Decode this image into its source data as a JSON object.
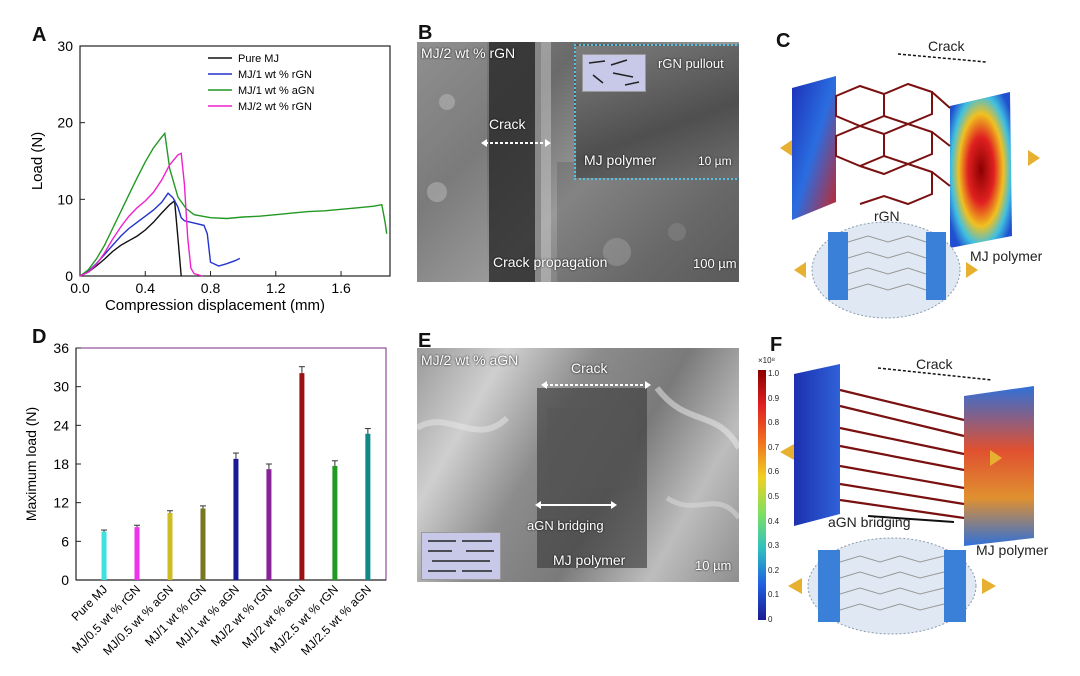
{
  "panels": {
    "A": {
      "letter": "A"
    },
    "B": {
      "letter": "B",
      "title": "MJ/2 wt % rGN",
      "crack": "Crack",
      "crack_propagation": "Crack propagation",
      "scale": "100 µm",
      "inset_pullout": "rGN pullout",
      "inset_polymer": "MJ polymer",
      "inset_scale": "10 µm"
    },
    "C": {
      "letter": "C",
      "crack": "Crack",
      "rgn": "rGN",
      "polymer": "MJ polymer"
    },
    "D": {
      "letter": "D"
    },
    "E": {
      "letter": "E",
      "title": "MJ/2 wt % aGN",
      "crack": "Crack",
      "bridging": "aGN bridging",
      "polymer": "MJ polymer",
      "scale": "10 µm"
    },
    "F": {
      "letter": "F",
      "crack": "Crack",
      "bridging": "aGN bridging",
      "polymer": "MJ polymer",
      "colorbar_unit": "×10⁸",
      "colorbar_ticks": [
        "1.0",
        "0.9",
        "0.8",
        "0.7",
        "0.6",
        "0.5",
        "0.4",
        "0.3",
        "0.2",
        "0.1",
        "0"
      ]
    }
  },
  "chart_data": [
    {
      "type": "line",
      "xlabel": "Compression displacement (mm)",
      "ylabel": "Load (N)",
      "xlim": [
        0,
        1.9
      ],
      "ylim": [
        0,
        30
      ],
      "xticks": [
        "0.0",
        "0.4",
        "0.8",
        "1.2",
        "1.6"
      ],
      "yticks": [
        "0",
        "10",
        "20",
        "30"
      ],
      "legend_position": "top-right",
      "series": [
        {
          "name": "Pure MJ",
          "color": "#111111",
          "x": [
            0,
            0.05,
            0.1,
            0.15,
            0.2,
            0.25,
            0.3,
            0.35,
            0.4,
            0.45,
            0.5,
            0.55,
            0.58,
            0.6,
            0.62
          ],
          "y": [
            0,
            0.5,
            1.3,
            2.2,
            3.2,
            4.0,
            4.6,
            5.2,
            6.0,
            7.0,
            8.2,
            9.3,
            9.8,
            5,
            0
          ]
        },
        {
          "name": "MJ/1 wt % rGN",
          "color": "#2233cc",
          "x": [
            0,
            0.05,
            0.1,
            0.15,
            0.2,
            0.25,
            0.3,
            0.35,
            0.4,
            0.45,
            0.5,
            0.54,
            0.57,
            0.6,
            0.62,
            0.64,
            0.7,
            0.76,
            0.78,
            0.8,
            0.85,
            0.9,
            0.95,
            0.98
          ],
          "y": [
            0,
            0.6,
            1.6,
            2.8,
            4.0,
            5.2,
            6.2,
            7.0,
            7.8,
            8.6,
            9.6,
            10.8,
            10.2,
            9.0,
            7.6,
            7.2,
            6.9,
            6.6,
            5.5,
            1.8,
            1.3,
            1.6,
            2.0,
            2.3
          ]
        },
        {
          "name": "MJ/1 wt % aGN",
          "color": "#229922",
          "x": [
            0,
            0.05,
            0.1,
            0.15,
            0.2,
            0.25,
            0.3,
            0.35,
            0.4,
            0.45,
            0.5,
            0.52,
            0.55,
            0.6,
            0.65,
            0.7,
            0.8,
            0.9,
            1.0,
            1.1,
            1.2,
            1.3,
            1.4,
            1.5,
            1.6,
            1.7,
            1.8,
            1.85,
            1.87,
            1.88
          ],
          "y": [
            0,
            0.8,
            2.2,
            4.0,
            6.2,
            8.4,
            10.6,
            12.8,
            14.9,
            16.7,
            18.1,
            18.6,
            14.0,
            10.3,
            8.8,
            8.0,
            7.6,
            7.5,
            7.7,
            7.8,
            8.0,
            8.2,
            8.4,
            8.5,
            8.7,
            8.9,
            9.1,
            9.3,
            7.0,
            5.5
          ]
        },
        {
          "name": "MJ/2 wt % rGN",
          "color": "#ee22cc",
          "x": [
            0,
            0.05,
            0.1,
            0.15,
            0.2,
            0.25,
            0.3,
            0.35,
            0.4,
            0.45,
            0.5,
            0.55,
            0.6,
            0.62,
            0.64,
            0.66,
            0.68,
            0.7,
            0.75
          ],
          "y": [
            0,
            0.5,
            1.5,
            3.0,
            4.8,
            6.4,
            7.8,
            8.9,
            9.8,
            10.9,
            12.5,
            14.5,
            15.8,
            16.0,
            12.0,
            5.0,
            1.0,
            0.3,
            0
          ]
        }
      ]
    },
    {
      "type": "bar",
      "ylabel": "Maximum load (N)",
      "ylim": [
        0,
        36
      ],
      "yticks": [
        "0",
        "6",
        "12",
        "18",
        "24",
        "30",
        "36"
      ],
      "categories": [
        "Pure MJ",
        "MJ/0.5 wt % rGN",
        "MJ/0.5 wt % aGN",
        "MJ/1 wt % rGN",
        "MJ/1 wt % aGN",
        "MJ/2 wt % rGN",
        "MJ/2 wt % aGN",
        "MJ/2.5 wt % rGN",
        "MJ/2.5 wt % aGN"
      ],
      "values": [
        7.5,
        8.2,
        10.4,
        11.1,
        18.8,
        17.2,
        32.1,
        17.7,
        22.7
      ],
      "errors": [
        0.25,
        0.3,
        0.35,
        0.4,
        0.9,
        0.8,
        1.0,
        0.8,
        0.8
      ],
      "colors": [
        "#3ee0e0",
        "#ee33ee",
        "#ccbb22",
        "#777722",
        "#1a1a99",
        "#882299",
        "#991111",
        "#229922",
        "#118888"
      ]
    }
  ]
}
